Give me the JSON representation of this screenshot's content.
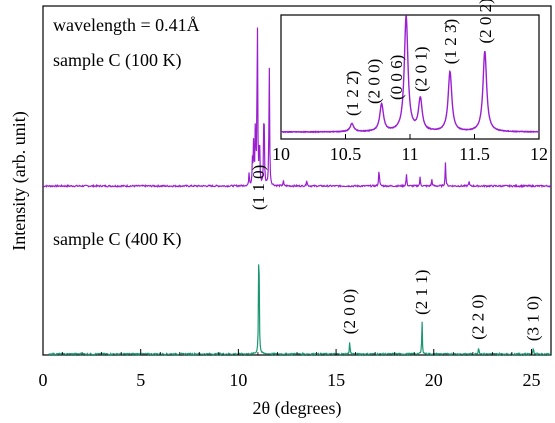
{
  "chart_data": {
    "type": "line",
    "xlabel": "2θ (degrees)",
    "ylabel": "Intensity (arb. unit)",
    "xlim": [
      0,
      26
    ],
    "x_ticks": [
      0,
      5,
      10,
      15,
      20,
      25
    ],
    "x_tick_labels": [
      "0",
      "5",
      "10",
      "15",
      "20",
      "25"
    ],
    "y_ticks_shown": false,
    "grid": false,
    "annotations": {
      "wavelength": "wavelength = 0.41Å",
      "sample_top": "sample C (100 K)",
      "sample_bottom": "sample C (400 K)"
    },
    "series": [
      {
        "label": "sample C (100 K)",
        "color": "#9b1fd0",
        "peaks": [
          {
            "x": 10.55,
            "y": 0.07
          },
          {
            "x": 10.72,
            "y": 0.14
          },
          {
            "x": 10.78,
            "y": 0.24
          },
          {
            "x": 10.87,
            "y": 0.35
          },
          {
            "x": 10.97,
            "y": 1.0
          },
          {
            "x": 11.08,
            "y": 0.28
          },
          {
            "x": 11.31,
            "y": 0.52
          },
          {
            "x": 11.58,
            "y": 0.7
          },
          {
            "x": 12.3,
            "y": 0.03
          },
          {
            "x": 13.5,
            "y": 0.04
          },
          {
            "x": 17.2,
            "y": 0.11
          },
          {
            "x": 18.6,
            "y": 0.07
          },
          {
            "x": 19.3,
            "y": 0.05
          },
          {
            "x": 19.9,
            "y": 0.04
          },
          {
            "x": 20.6,
            "y": 0.14
          },
          {
            "x": 21.8,
            "y": 0.03
          }
        ]
      },
      {
        "label": "sample C (400 K)",
        "color": "#1a9670",
        "peaks": [
          {
            "x": 11.05,
            "y": 1.0,
            "label": "(1 1 0)"
          },
          {
            "x": 15.7,
            "y": 0.1,
            "label": "(2 0 0)"
          },
          {
            "x": 19.4,
            "y": 0.24,
            "label": "(2 1 1)"
          },
          {
            "x": 22.3,
            "y": 0.06,
            "label": "(2 2 0)"
          },
          {
            "x": 25.1,
            "y": 0.05,
            "label": "(3 1 0)"
          }
        ]
      }
    ],
    "inset": {
      "xlim": [
        10,
        12
      ],
      "x_ticks": [
        10,
        10.5,
        11,
        11.5,
        12
      ],
      "x_tick_labels": [
        "10",
        "10.5",
        "11",
        "11.5",
        "12"
      ],
      "peaks": [
        {
          "x": 10.55,
          "y": 0.07,
          "label": "(1 2 2̄)"
        },
        {
          "x": 10.78,
          "y": 0.24,
          "label": "(2 0 0)"
        },
        {
          "x": 10.97,
          "y": 1.0,
          "label": "(0 0 6)"
        },
        {
          "x": 11.08,
          "y": 0.28,
          "label": "(2 0 1)"
        },
        {
          "x": 11.31,
          "y": 0.52,
          "label": "(1 2 3̄)"
        },
        {
          "x": 11.58,
          "y": 0.7,
          "label": "(2 0 2)"
        }
      ]
    }
  }
}
